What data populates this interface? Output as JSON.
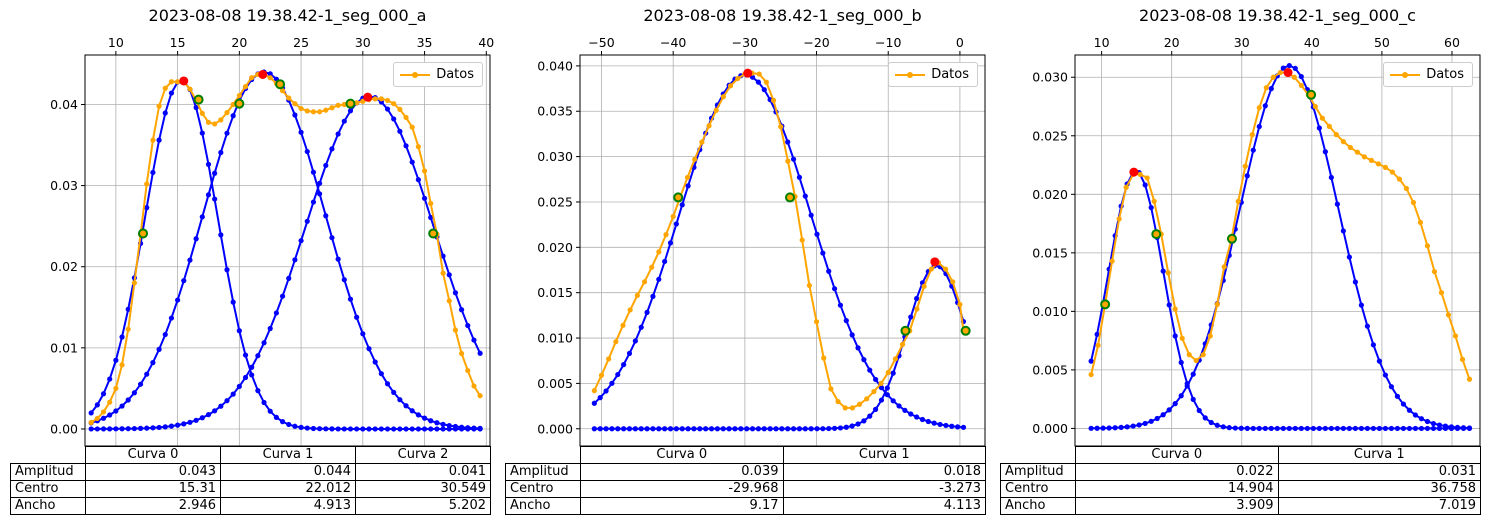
{
  "colors": {
    "data_series": "#ffa500",
    "fit_curves": "#0000ff",
    "peaks": "#ff0000",
    "inflection_fill": "#ffa500",
    "inflection_edge": "#008000",
    "grid": "#b0b0b0"
  },
  "legend_label": "Datos",
  "row_labels": [
    "Amplitud",
    "Centro",
    "Ancho"
  ],
  "chart_data": [
    {
      "type": "line",
      "title": "2023-08-08 19.38.42-1_seg_000_a",
      "xlim": [
        7.5,
        40.3
      ],
      "ylim": [
        -0.0021,
        0.0461
      ],
      "xticks": [
        10,
        15,
        20,
        25,
        30,
        35,
        40
      ],
      "yticks": [
        0.0,
        0.01,
        0.02,
        0.03,
        0.04
      ],
      "ytick_labels": [
        "0.00",
        "0.01",
        "0.02",
        "0.03",
        "0.04"
      ],
      "x_axis_position": "top",
      "grid": true,
      "legend_position": "top-right",
      "x_range": [
        8,
        39.5
      ],
      "data": {
        "name": "Datos",
        "x": [
          8,
          8.5,
          9,
          9.5,
          10,
          10.5,
          11,
          11.5,
          12,
          12.5,
          13,
          13.5,
          14,
          14.5,
          15,
          15.5,
          16,
          16.5,
          17,
          17.5,
          18,
          18.5,
          19,
          19.5,
          20,
          20.5,
          21,
          21.5,
          22,
          22.5,
          23,
          23.5,
          24,
          24.5,
          25,
          25.5,
          26,
          26.5,
          27,
          27.5,
          28,
          28.5,
          29,
          29.5,
          30,
          30.5,
          31,
          31.5,
          32,
          32.5,
          33,
          33.5,
          34,
          34.5,
          35,
          35.5,
          36,
          36.5,
          37,
          37.5,
          38,
          38.5,
          39,
          39.5
        ],
        "y": [
          0.0008,
          0.0013,
          0.0021,
          0.0033,
          0.005,
          0.0079,
          0.0123,
          0.018,
          0.024,
          0.0302,
          0.0356,
          0.0398,
          0.042,
          0.0428,
          0.0428,
          0.0428,
          0.0419,
          0.0405,
          0.0389,
          0.0378,
          0.0376,
          0.0381,
          0.039,
          0.04,
          0.0411,
          0.0422,
          0.0433,
          0.0437,
          0.0437,
          0.0433,
          0.0426,
          0.0417,
          0.0408,
          0.0401,
          0.0395,
          0.0392,
          0.0391,
          0.0391,
          0.0393,
          0.0396,
          0.0399,
          0.04,
          0.04,
          0.0402,
          0.0404,
          0.0406,
          0.0407,
          0.0407,
          0.0405,
          0.0401,
          0.0394,
          0.0384,
          0.0372,
          0.0348,
          0.0318,
          0.0278,
          0.024,
          0.0192,
          0.0158,
          0.0122,
          0.0093,
          0.0072,
          0.0053,
          0.0041
        ]
      },
      "fit_curves": [
        {
          "name": "Curva 0",
          "amplitude": 0.043,
          "center": 15.31,
          "width": 2.946
        },
        {
          "name": "Curva 1",
          "amplitude": 0.044,
          "center": 22.012,
          "width": 4.913
        },
        {
          "name": "Curva 2",
          "amplitude": 0.041,
          "center": 30.549,
          "width": 5.202
        }
      ],
      "peaks": [
        {
          "x": 15.5,
          "y": 0.0429
        },
        {
          "x": 21.9,
          "y": 0.0437
        },
        {
          "x": 30.4,
          "y": 0.0409
        }
      ],
      "inflections": [
        {
          "x": 12.2,
          "y": 0.0241
        },
        {
          "x": 16.7,
          "y": 0.0406
        },
        {
          "x": 20,
          "y": 0.0401
        },
        {
          "x": 23.3,
          "y": 0.0425
        },
        {
          "x": 29,
          "y": 0.0401
        },
        {
          "x": 35.7,
          "y": 0.0241
        }
      ],
      "table": {
        "columns": [
          "Curva 0",
          "Curva 1",
          "Curva 2"
        ],
        "rows": [
          [
            "0.043",
            "0.044",
            "0.041"
          ],
          [
            "15.31",
            "22.012",
            "30.549"
          ],
          [
            "2.946",
            "4.913",
            "5.202"
          ]
        ]
      }
    },
    {
      "type": "line",
      "title": "2023-08-08 19.38.42-1_seg_000_b",
      "xlim": [
        -53,
        3.5
      ],
      "ylim": [
        -0.0019,
        0.0412
      ],
      "xticks": [
        -50,
        -40,
        -30,
        -20,
        -10,
        0
      ],
      "yticks": [
        0.0,
        0.005,
        0.01,
        0.015,
        0.02,
        0.025,
        0.03,
        0.035,
        0.04
      ],
      "ytick_labels": [
        "0.000",
        "0.005",
        "0.010",
        "0.015",
        "0.020",
        "0.025",
        "0.030",
        "0.035",
        "0.040"
      ],
      "x_axis_position": "top",
      "grid": true,
      "legend_position": "top-right",
      "x_range": [
        -51,
        0.5
      ],
      "data": {
        "name": "Datos",
        "x": [
          -51,
          -50,
          -49,
          -48,
          -47,
          -46,
          -45,
          -44,
          -43,
          -42,
          -41,
          -40,
          -39,
          -38,
          -37,
          -36,
          -35,
          -34,
          -33,
          -32,
          -31,
          -30,
          -29,
          -28,
          -27,
          -26,
          -25,
          -24,
          -23,
          -22,
          -21,
          -20,
          -19,
          -18,
          -17,
          -16,
          -15,
          -14,
          -13,
          -12,
          -11,
          -10,
          -9,
          -8,
          -7,
          -6,
          -5,
          -4,
          -3,
          -2,
          -1,
          0,
          0.5
        ],
        "y": [
          0.0042,
          0.0059,
          0.0077,
          0.0096,
          0.0114,
          0.0131,
          0.0147,
          0.0162,
          0.0178,
          0.0195,
          0.0214,
          0.0234,
          0.0256,
          0.0277,
          0.0297,
          0.0316,
          0.0334,
          0.0351,
          0.0366,
          0.0378,
          0.0386,
          0.0391,
          0.0392,
          0.0391,
          0.0382,
          0.0362,
          0.0333,
          0.0295,
          0.0256,
          0.0208,
          0.0158,
          0.0118,
          0.0078,
          0.0044,
          0.003,
          0.0023,
          0.0023,
          0.0027,
          0.0033,
          0.0041,
          0.005,
          0.0062,
          0.0077,
          0.0093,
          0.0108,
          0.0132,
          0.0157,
          0.0176,
          0.0183,
          0.0176,
          0.0162,
          0.0137,
          0.0108
        ]
      },
      "fit_curves": [
        {
          "name": "Curva 0",
          "amplitude": 0.039,
          "center": -29.968,
          "width": 9.17
        },
        {
          "name": "Curva 1",
          "amplitude": 0.018,
          "center": -3.273,
          "width": 4.113
        }
      ],
      "peaks": [
        {
          "x": -29.6,
          "y": 0.0392
        },
        {
          "x": -3.5,
          "y": 0.0184
        }
      ],
      "inflections": [
        {
          "x": -39.3,
          "y": 0.0255
        },
        {
          "x": -23.7,
          "y": 0.0255
        },
        {
          "x": -7.6,
          "y": 0.0108
        },
        {
          "x": 0.8,
          "y": 0.0108
        }
      ],
      "table": {
        "columns": [
          "Curva 0",
          "Curva 1"
        ],
        "rows": [
          [
            "0.039",
            "0.018"
          ],
          [
            "-29.968",
            "-3.273"
          ],
          [
            "9.17",
            "4.113"
          ]
        ]
      }
    },
    {
      "type": "line",
      "title": "2023-08-08 19.38.42-1_seg_000_c",
      "xlim": [
        6.2,
        64
      ],
      "ylim": [
        -0.0015,
        0.0319
      ],
      "xticks": [
        10,
        20,
        30,
        40,
        50,
        60
      ],
      "yticks": [
        0.0,
        0.005,
        0.01,
        0.015,
        0.02,
        0.025,
        0.03
      ],
      "ytick_labels": [
        "0.000",
        "0.005",
        "0.010",
        "0.015",
        "0.020",
        "0.025",
        "0.030"
      ],
      "x_axis_position": "top",
      "grid": true,
      "legend_position": "top-right",
      "x_range": [
        8.5,
        62.5
      ],
      "data": {
        "name": "Datos",
        "x": [
          8.5,
          9.5,
          10.5,
          11.5,
          12.5,
          13.5,
          14.5,
          15.5,
          16.5,
          17.5,
          18.5,
          19.5,
          20.5,
          21.5,
          22.5,
          23.5,
          24.5,
          25.5,
          26.5,
          27.5,
          28.5,
          29.5,
          30.5,
          31.5,
          32.5,
          33.5,
          34.5,
          35.5,
          36.5,
          37.5,
          38.5,
          39.5,
          40.5,
          41.5,
          42.5,
          43.5,
          44.5,
          45.5,
          46.5,
          47.5,
          48.5,
          49.5,
          50.5,
          51.5,
          52.5,
          53.5,
          54.5,
          55.5,
          56.5,
          57.5,
          58.5,
          59.5,
          60.5,
          61.5,
          62.5
        ],
        "y": [
          0.0046,
          0.0071,
          0.0106,
          0.0143,
          0.0179,
          0.0206,
          0.0217,
          0.0217,
          0.0214,
          0.0194,
          0.0166,
          0.0133,
          0.0102,
          0.0077,
          0.0063,
          0.0058,
          0.0063,
          0.0079,
          0.0106,
          0.0138,
          0.0161,
          0.0194,
          0.0224,
          0.0251,
          0.0274,
          0.0291,
          0.03,
          0.0304,
          0.0304,
          0.03,
          0.0293,
          0.0285,
          0.0275,
          0.0265,
          0.0258,
          0.0251,
          0.0245,
          0.024,
          0.0236,
          0.0232,
          0.0229,
          0.0226,
          0.0223,
          0.0219,
          0.0213,
          0.0205,
          0.0193,
          0.0176,
          0.0156,
          0.0134,
          0.0116,
          0.0097,
          0.0079,
          0.0059,
          0.0042
        ]
      },
      "fit_curves": [
        {
          "name": "Curva 0",
          "amplitude": 0.022,
          "center": 14.904,
          "width": 3.909
        },
        {
          "name": "Curva 1",
          "amplitude": 0.031,
          "center": 36.758,
          "width": 7.019
        }
      ],
      "peaks": [
        {
          "x": 14.6,
          "y": 0.0219
        },
        {
          "x": 36.6,
          "y": 0.0304
        }
      ],
      "inflections": [
        {
          "x": 10.5,
          "y": 0.0106
        },
        {
          "x": 17.8,
          "y": 0.0166
        },
        {
          "x": 28.6,
          "y": 0.0162
        },
        {
          "x": 39.9,
          "y": 0.0285
        }
      ],
      "table": {
        "columns": [
          "Curva 0",
          "Curva 1"
        ],
        "rows": [
          [
            "0.022",
            "0.031"
          ],
          [
            "14.904",
            "36.758"
          ],
          [
            "3.909",
            "7.019"
          ]
        ]
      }
    }
  ]
}
